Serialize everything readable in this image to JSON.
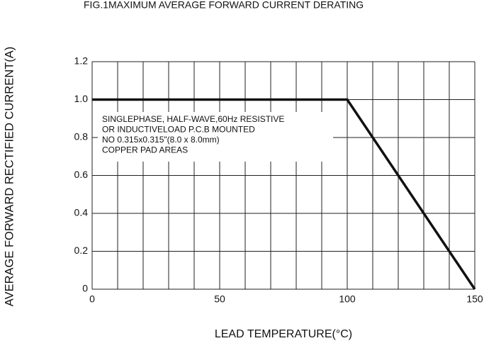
{
  "chart_data": {
    "type": "line",
    "title": "FIG.1MAXIMUM AVERAGE FORWARD CURRENT DERATING",
    "x_label": "LEAD TEMPERATURE(°C)",
    "y_label": "AVERAGE FORWARD RECTIFIED CURRENT(A)",
    "annotation": [
      "SINGLEPHASE, HALF-WAVE,60Hz RESISTIVE",
      "OR INDUCTIVELOAD P.C.B MOUNTED",
      "NO 0.315x0.315\"(8.0 x 8.0mm)",
      "COPPER PAD AREAS"
    ],
    "x": [
      0,
      100,
      150
    ],
    "series": [
      {
        "color": "#111111",
        "values": [
          1.0,
          1.0,
          0
        ]
      }
    ],
    "xlim": [
      0,
      150
    ],
    "xticks": [
      0,
      50,
      100,
      150
    ],
    "xgrid": [
      0,
      10,
      20,
      30,
      40,
      50,
      60,
      70,
      80,
      90,
      100,
      110,
      120,
      130,
      140,
      150
    ],
    "ylim": [
      0,
      1.2
    ],
    "yticks": [
      0,
      0.2,
      0.4,
      0.6,
      0.8,
      {
        "value": 1.0,
        "label": "1.0"
      },
      1.2
    ],
    "grid": true
  }
}
